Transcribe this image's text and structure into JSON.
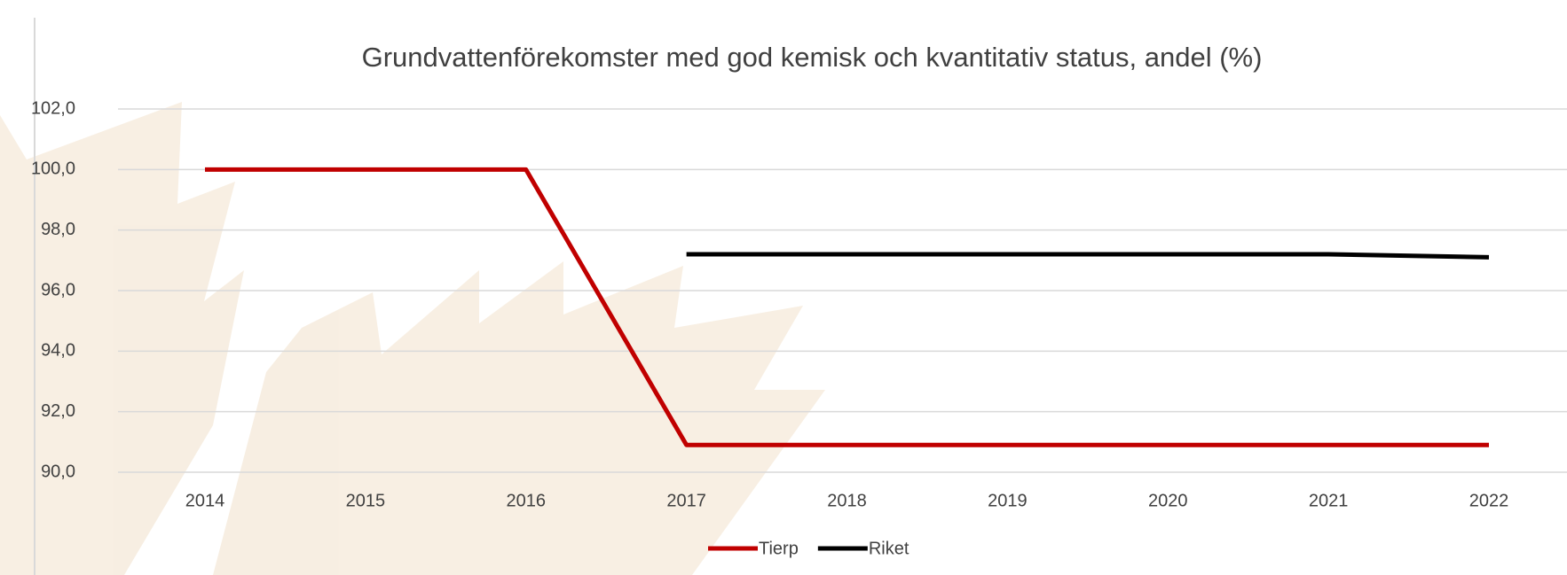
{
  "chart_data": {
    "type": "line",
    "title": "Grundvattenförekomster med god kemisk och kvantitativ status, andel (%)",
    "categories": [
      "2014",
      "2015",
      "2016",
      "2017",
      "2018",
      "2019",
      "2020",
      "2021",
      "2022"
    ],
    "series": [
      {
        "name": "Tierp",
        "color": "#c00000",
        "values": [
          100,
          100,
          100,
          90.9,
          90.9,
          90.9,
          90.9,
          90.9,
          90.9
        ]
      },
      {
        "name": "Riket",
        "color": "#000000",
        "values": [
          null,
          null,
          null,
          97.2,
          97.2,
          97.2,
          97.2,
          97.2,
          97.1
        ]
      }
    ],
    "ylim": [
      90,
      102
    ],
    "yticks": [
      {
        "value": 90,
        "label": "90,0"
      },
      {
        "value": 92,
        "label": "92,0"
      },
      {
        "value": 94,
        "label": "94,0"
      },
      {
        "value": 96,
        "label": "96,0"
      },
      {
        "value": 98,
        "label": "98,0"
      },
      {
        "value": 100,
        "label": "100,0"
      },
      {
        "value": 102,
        "label": "102,0"
      }
    ],
    "grid": true,
    "legend": "bottom"
  }
}
